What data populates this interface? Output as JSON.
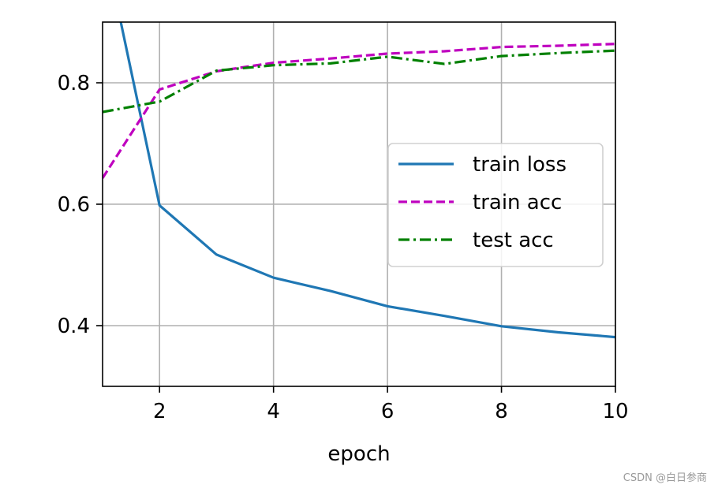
{
  "chart_data": {
    "type": "line",
    "title": "",
    "xlabel": "epoch",
    "ylabel": "",
    "xlim": [
      1,
      10
    ],
    "ylim": [
      0.3,
      0.9
    ],
    "xticks": [
      2,
      4,
      6,
      8,
      10
    ],
    "xtick_labels": [
      "2",
      "4",
      "6",
      "8",
      "10"
    ],
    "yticks": [
      0.4,
      0.6,
      0.8
    ],
    "ytick_labels": [
      "0.4",
      "0.6",
      "0.8"
    ],
    "grid": true,
    "legend_position": "center-right",
    "series": [
      {
        "name": "train loss",
        "color": "#1f77b4",
        "style": "solid",
        "x": [
          1.32,
          2,
          3,
          4,
          5,
          6,
          7,
          8,
          9,
          10
        ],
        "y": [
          0.9,
          0.598,
          0.517,
          0.479,
          0.457,
          0.432,
          0.416,
          0.399,
          0.389,
          0.381
        ]
      },
      {
        "name": "train acc",
        "color": "#bf00bf",
        "style": "dashed",
        "x": [
          1,
          2,
          3,
          4,
          5,
          6,
          7,
          8,
          9,
          10
        ],
        "y": [
          0.643,
          0.789,
          0.819,
          0.833,
          0.84,
          0.848,
          0.852,
          0.859,
          0.861,
          0.864
        ]
      },
      {
        "name": "test acc",
        "color": "#008000",
        "style": "dashdot",
        "x": [
          1,
          2,
          3,
          4,
          5,
          6,
          7,
          8,
          9,
          10
        ],
        "y": [
          0.752,
          0.769,
          0.82,
          0.829,
          0.832,
          0.843,
          0.831,
          0.844,
          0.849,
          0.853
        ]
      }
    ]
  },
  "watermark": "CSDN @白日参商"
}
